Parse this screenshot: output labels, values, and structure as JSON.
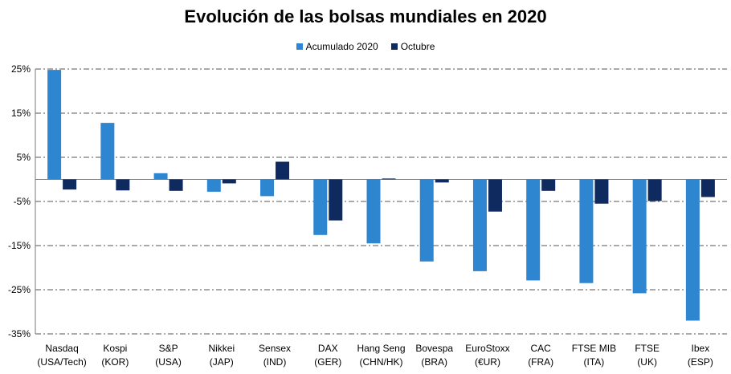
{
  "chart_data": {
    "type": "bar",
    "title": "Evolución de las bolsas mundiales en 2020",
    "xlabel": "",
    "ylabel": "",
    "ylim": [
      -35,
      25
    ],
    "yticks": [
      25,
      15,
      5,
      -5,
      -15,
      -25,
      -35
    ],
    "ytick_labels": [
      "25%",
      "15%",
      "5%",
      "-5%",
      "-15%",
      "-25%",
      "-35%"
    ],
    "grid": true,
    "legend_position": "top-center",
    "categories": [
      [
        "Nasdaq",
        "(USA/Tech)"
      ],
      [
        "Kospi",
        "(KOR)"
      ],
      [
        "S&P",
        "(USA)"
      ],
      [
        "Nikkei",
        "(JAP)"
      ],
      [
        "Sensex",
        "(IND)"
      ],
      [
        "DAX",
        "(GER)"
      ],
      [
        "Hang Seng",
        "(CHN/HK)"
      ],
      [
        "Bovespa",
        "(BRA)"
      ],
      [
        "EuroStoxx",
        "(€UR)"
      ],
      [
        "CAC",
        "(FRA)"
      ],
      [
        "FTSE MIB",
        "(ITA)"
      ],
      [
        "FTSE",
        "(UK)"
      ],
      [
        "Ibex",
        "(ESP)"
      ]
    ],
    "series": [
      {
        "name": "Acumulado 2020",
        "color": "#2e86d1",
        "values": [
          24.8,
          12.8,
          1.4,
          -2.8,
          -3.8,
          -12.6,
          -14.5,
          -18.6,
          -20.8,
          -22.9,
          -23.5,
          -25.8,
          -32.0
        ]
      },
      {
        "name": "Octubre",
        "color": "#0f2a5e",
        "values": [
          -2.3,
          -2.5,
          -2.6,
          -0.9,
          4.0,
          -9.3,
          0.2,
          -0.7,
          -7.3,
          -2.6,
          -5.5,
          -4.9,
          -4.0
        ]
      }
    ]
  }
}
